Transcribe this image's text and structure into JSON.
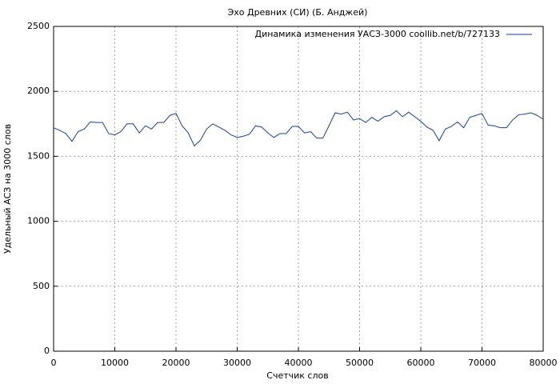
{
  "chart_data": {
    "type": "line",
    "title": "Эхо Древних (СИ) (Б. Анджей)",
    "x_label": "Счетчик слов",
    "y_label": "Удельный АСЗ на 3000 слов",
    "x": [
      0,
      1000,
      2000,
      3000,
      4000,
      5000,
      6000,
      7000,
      8000,
      9000,
      10000,
      11000,
      12000,
      13000,
      14000,
      15000,
      16000,
      17000,
      18000,
      19000,
      20000,
      21000,
      22000,
      23000,
      24000,
      25000,
      26000,
      27000,
      28000,
      29000,
      30000,
      31000,
      32000,
      33000,
      34000,
      35000,
      36000,
      37000,
      38000,
      39000,
      40000,
      41000,
      42000,
      43000,
      44000,
      45000,
      46000,
      47000,
      48000,
      49000,
      50000,
      51000,
      52000,
      53000,
      54000,
      55000,
      56000,
      57000,
      58000,
      59000,
      60000,
      61000,
      62000,
      63000,
      64000,
      65000,
      66000,
      67000,
      68000,
      69000,
      70000,
      71000,
      72000,
      73000,
      74000,
      75000,
      76000,
      77000,
      78000,
      79000,
      80000
    ],
    "series": [
      {
        "name": "Динамика изменения УАСЗ-3000 coollib.net/b/727133",
        "color": "#1a3f94",
        "values": [
          1720,
          1700,
          1675,
          1615,
          1690,
          1710,
          1765,
          1760,
          1760,
          1675,
          1665,
          1690,
          1750,
          1750,
          1680,
          1735,
          1710,
          1760,
          1760,
          1815,
          1830,
          1735,
          1680,
          1580,
          1625,
          1710,
          1750,
          1725,
          1700,
          1665,
          1645,
          1655,
          1670,
          1735,
          1725,
          1680,
          1645,
          1675,
          1675,
          1730,
          1730,
          1680,
          1690,
          1640,
          1640,
          1735,
          1835,
          1825,
          1840,
          1780,
          1790,
          1760,
          1800,
          1770,
          1805,
          1815,
          1850,
          1805,
          1840,
          1805,
          1770,
          1725,
          1700,
          1620,
          1710,
          1730,
          1765,
          1720,
          1800,
          1815,
          1830,
          1740,
          1735,
          1720,
          1720,
          1780,
          1820,
          1825,
          1835,
          1815,
          1785
        ]
      }
    ],
    "xlim": [
      0,
      80000
    ],
    "xticks": [
      0,
      10000,
      20000,
      30000,
      40000,
      50000,
      60000,
      70000,
      80000
    ],
    "ylim": [
      0,
      2500
    ],
    "yticks": [
      0,
      500,
      1000,
      1500,
      2000,
      2500
    ],
    "grid": true,
    "legend": "top-right"
  }
}
